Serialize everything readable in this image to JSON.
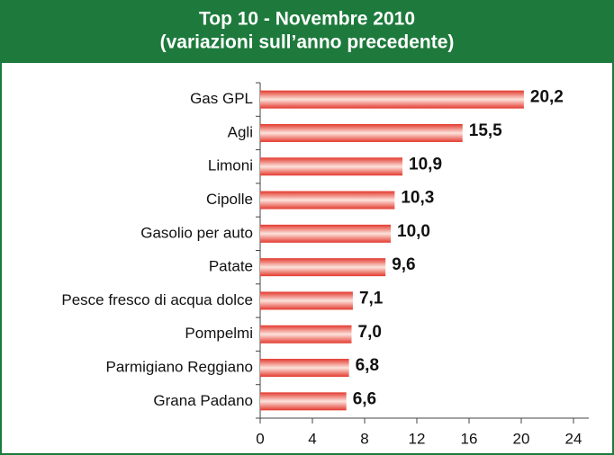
{
  "chart_data": {
    "type": "hbar",
    "title": "Top 10 - Novembre 2010",
    "subtitle": "(variazioni sull’anno precedente)",
    "categories": [
      "Gas GPL",
      "Agli",
      "Limoni",
      "Cipolle",
      "Gasolio per auto",
      "Patate",
      "Pesce fresco di acqua dolce",
      "Pompelmi",
      "Parmigiano Reggiano",
      "Grana Padano"
    ],
    "values": [
      20.2,
      15.5,
      10.9,
      10.3,
      10.0,
      9.6,
      7.1,
      7.0,
      6.8,
      6.6
    ],
    "value_labels": [
      "20,2",
      "15,5",
      "10,9",
      "10,3",
      "10,0",
      "9,6",
      "7,1",
      "7,0",
      "6,8",
      "6,6"
    ],
    "color": "#e3392e",
    "xlim": [
      0,
      24
    ],
    "xticks": [
      0,
      4,
      8,
      12,
      16,
      20,
      24
    ]
  }
}
